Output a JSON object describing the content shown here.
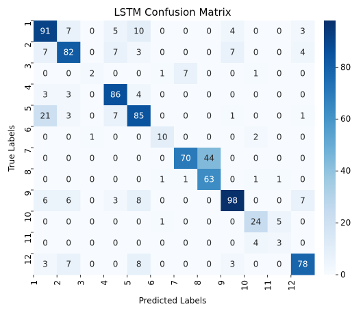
{
  "chart_data": {
    "type": "heatmap",
    "title": "LSTM Confusion Matrix",
    "xlabel": "Predicted Labels",
    "ylabel": "True Labels",
    "x_tick_labels": [
      "1",
      "2",
      "3",
      "4",
      "5",
      "6",
      "7",
      "8",
      "9",
      "10",
      "11",
      "12"
    ],
    "y_tick_labels": [
      "1",
      "2",
      "3",
      "4",
      "5",
      "6",
      "7",
      "8",
      "9",
      "10",
      "11",
      "12"
    ],
    "matrix": [
      [
        91,
        7,
        0,
        5,
        10,
        0,
        0,
        0,
        4,
        0,
        0,
        3
      ],
      [
        7,
        82,
        0,
        7,
        3,
        0,
        0,
        0,
        7,
        0,
        0,
        4
      ],
      [
        0,
        0,
        2,
        0,
        0,
        1,
        7,
        0,
        0,
        1,
        0,
        0
      ],
      [
        3,
        3,
        0,
        86,
        4,
        0,
        0,
        0,
        0,
        0,
        0,
        0
      ],
      [
        21,
        3,
        0,
        7,
        85,
        0,
        0,
        0,
        1,
        0,
        0,
        1
      ],
      [
        0,
        0,
        1,
        0,
        0,
        10,
        0,
        0,
        0,
        2,
        0,
        0
      ],
      [
        0,
        0,
        0,
        0,
        0,
        0,
        70,
        44,
        0,
        0,
        0,
        0
      ],
      [
        0,
        0,
        0,
        0,
        0,
        1,
        1,
        63,
        0,
        1,
        1,
        0
      ],
      [
        6,
        6,
        0,
        3,
        8,
        0,
        0,
        0,
        98,
        0,
        0,
        7
      ],
      [
        0,
        0,
        0,
        0,
        0,
        1,
        0,
        0,
        0,
        24,
        5,
        0
      ],
      [
        0,
        0,
        0,
        0,
        0,
        0,
        0,
        0,
        0,
        4,
        3,
        0
      ],
      [
        3,
        7,
        0,
        0,
        8,
        0,
        0,
        0,
        3,
        0,
        0,
        78
      ]
    ],
    "colormap": "Blues",
    "vmin": 0,
    "vmax": 98,
    "colorbar": {
      "ticks": [
        0,
        20,
        40,
        60,
        80
      ],
      "tick_labels": [
        "0",
        "20",
        "40",
        "60",
        "80"
      ]
    },
    "colors": {
      "low": "#f7fbff",
      "high": "#08306b",
      "text_dark": "#262626",
      "text_light": "#ffffff"
    }
  }
}
